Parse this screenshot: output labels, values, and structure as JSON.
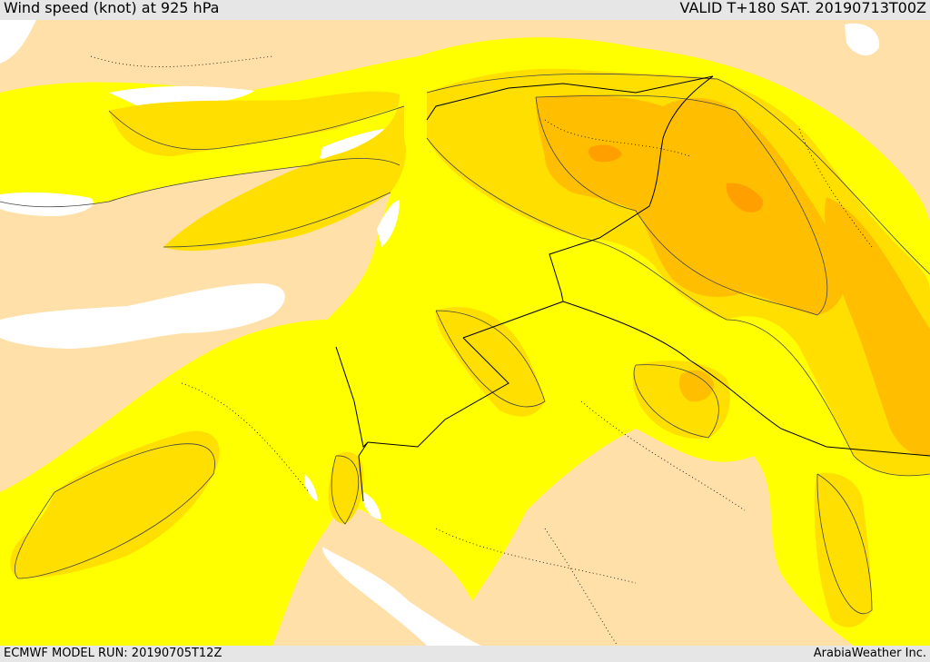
{
  "header": {
    "title": "Wind speed (knot) at 925 hPa",
    "valid": "VALID T+180 SAT. 20190713T00Z"
  },
  "footer": {
    "model_run": "ECMWF MODEL RUN: 20190705T12Z",
    "credit": "ArabiaWeather Inc."
  },
  "map": {
    "region": "Eastern Mediterranean, Levant and northern Arabia",
    "colors": {
      "land_calm": "#ffe0a8",
      "sea": "#ffffff",
      "wind_light": "#ffff00",
      "wind_moderate": "#ffdf00",
      "wind_fresh": "#ffbf00",
      "wind_strong": "#ff9f00",
      "contour": "#444444",
      "border": "#000000"
    }
  }
}
